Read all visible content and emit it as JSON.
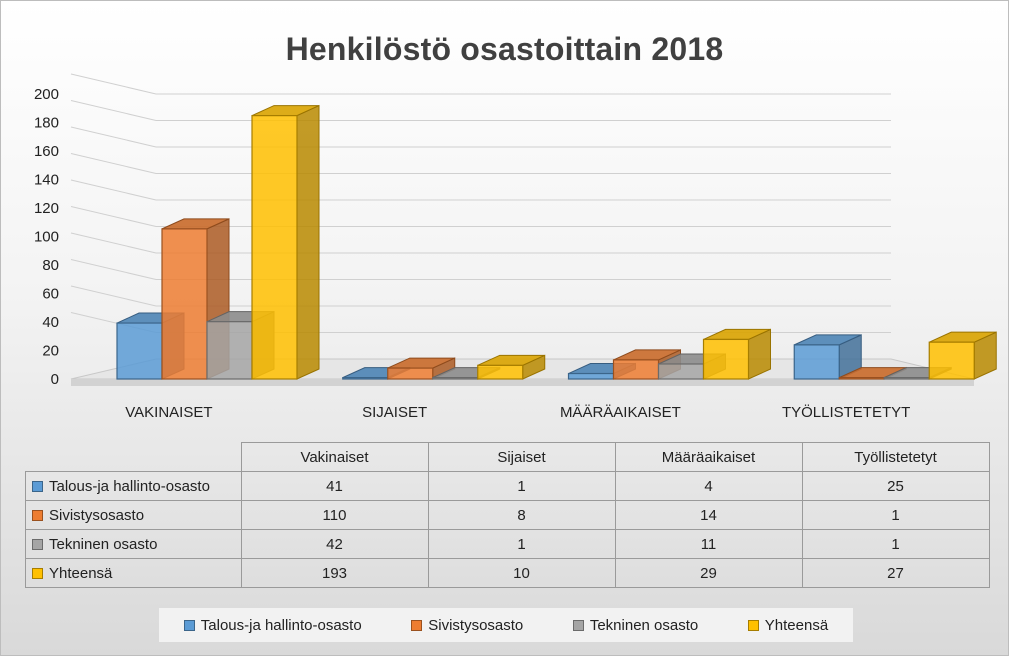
{
  "chart_data": {
    "type": "bar",
    "title": "Henkilöstö osastoittain 2018",
    "categories": [
      "VAKINAISET",
      "SIJAISET",
      "MÄÄRÄAIKAISET",
      "TYÖLLISTETETYT"
    ],
    "table_headers": [
      "Vakinaiset",
      "Sijaiset",
      "Määräaikaiset",
      "Työllistetetyt"
    ],
    "series": [
      {
        "name": "Talous-ja hallinto-osasto",
        "values": [
          41,
          1,
          4,
          25
        ],
        "color": "#5b9bd5"
      },
      {
        "name": "Sivistysosasto",
        "values": [
          110,
          8,
          14,
          1
        ],
        "color": "#ed7d31"
      },
      {
        "name": "Tekninen osasto",
        "values": [
          42,
          1,
          11,
          1
        ],
        "color": "#a5a5a5"
      },
      {
        "name": "Yhteensä",
        "values": [
          193,
          10,
          29,
          27
        ],
        "color": "#ffc000"
      }
    ],
    "ylim": [
      0,
      200
    ],
    "yticks": [
      0,
      20,
      40,
      60,
      80,
      100,
      120,
      140,
      160,
      180,
      200
    ],
    "grid": true,
    "legend_position": "bottom",
    "data_table": true
  }
}
